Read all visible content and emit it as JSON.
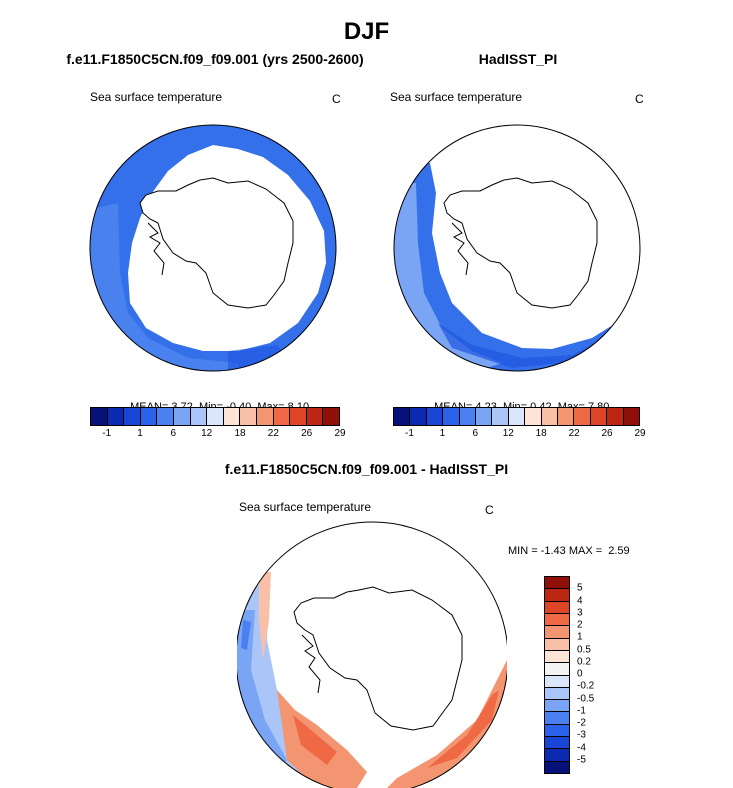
{
  "main_title": "DJF",
  "panels": [
    {
      "title": "f.e11.F1850C5CN.f09_f09.001 (yrs 2500-2600)",
      "subtitle": "Sea surface temperature",
      "units": "C",
      "stats": {
        "mean": "MEAN=",
        "mean_val": "3.72",
        "min": "Min=",
        "min_val": "-0.40",
        "max": "Max=",
        "max_val": "8.10"
      }
    },
    {
      "title": "HadISST_PI",
      "subtitle": "Sea surface temperature",
      "units": "C",
      "stats": {
        "mean": "MEAN=",
        "mean_val": "4.23",
        "min": "Min=",
        "min_val": "0.42",
        "max": "Max=",
        "max_val": "7.80"
      }
    }
  ],
  "diff_panel": {
    "title": "f.e11.F1850C5CN.f09_f09.001 - HadISST_PI",
    "subtitle": "Sea surface temperature",
    "units": "C",
    "minmax": "MIN = -1.43 MAX =  2.59"
  },
  "colorbar_top": {
    "labels": [
      "-1",
      "1",
      "6",
      "12",
      "18",
      "22",
      "26",
      "29"
    ],
    "colors": [
      "#08107a",
      "#0c2ab0",
      "#1a46d8",
      "#2b62ea",
      "#4a80f0",
      "#7aa4f4",
      "#aac6f8",
      "#dbe6fb",
      "#fde4d6",
      "#f8c0a6",
      "#f49572",
      "#ef6a44",
      "#dc4526",
      "#bb2712",
      "#8e1008"
    ]
  },
  "colorbar_diff": {
    "labels": [
      "-5",
      "-4",
      "-3",
      "-2",
      "-1",
      "-0.5",
      "-0.2",
      "0",
      "0.2",
      "0.5",
      "1",
      "2",
      "3",
      "4",
      "5"
    ],
    "colors": [
      "#08107a",
      "#0c2ab0",
      "#1a46d8",
      "#2b62ea",
      "#4a80f0",
      "#7aa4f4",
      "#aac6f8",
      "#dbe6fb",
      "#f4f4f4",
      "#fde4d6",
      "#f8c0a6",
      "#f49572",
      "#ef6a44",
      "#dc4526",
      "#bb2712",
      "#8e1008"
    ]
  }
}
